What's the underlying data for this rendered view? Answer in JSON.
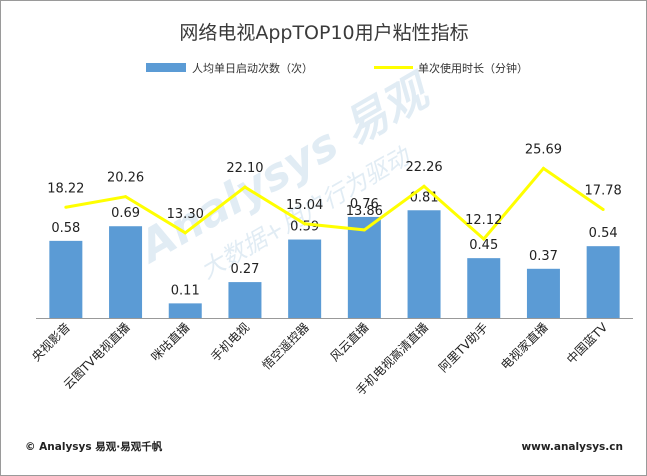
{
  "chart_data": {
    "type": "bar+line",
    "title": "网络电视AppTOP10用户粘性指标",
    "categories": [
      "央视影音",
      "云图TV电视直播",
      "咪咕直播",
      "手机电视",
      "悟空遥控器",
      "风云直播",
      "手机电视高清直播",
      "阿里TV助手",
      "电视家直播",
      "中国蓝TV"
    ],
    "series": [
      {
        "name": "人均单日启动次数（次）",
        "kind": "bar",
        "color": "#5b9bd5",
        "values": [
          0.58,
          0.69,
          0.11,
          0.27,
          0.59,
          0.76,
          0.81,
          0.45,
          0.37,
          0.54
        ],
        "labels": [
          "0.58",
          "0.69",
          "0.11",
          "0.27",
          "0.59",
          "0.76",
          "0.81",
          "0.45",
          "0.37",
          "0.54"
        ]
      },
      {
        "name": "单次使用时长（分钟）",
        "kind": "line",
        "color": "#ffff00",
        "values": [
          18.22,
          20.26,
          13.3,
          22.1,
          15.04,
          13.86,
          22.26,
          12.12,
          25.69,
          17.78
        ],
        "labels": [
          "18.22",
          "20.26",
          "13.30",
          "22.10",
          "15.04",
          "13.86",
          "22.26",
          "12.12",
          "25.69",
          "17.78"
        ]
      }
    ],
    "legend_position": "top",
    "grid": false
  },
  "watermark": {
    "text": "易观",
    "brand": "Analysys",
    "slogan": "大数据+用户行为驱动"
  },
  "footer": {
    "copyright": "© Analysys 易观·易观千帆",
    "url": "www.analysys.cn"
  }
}
